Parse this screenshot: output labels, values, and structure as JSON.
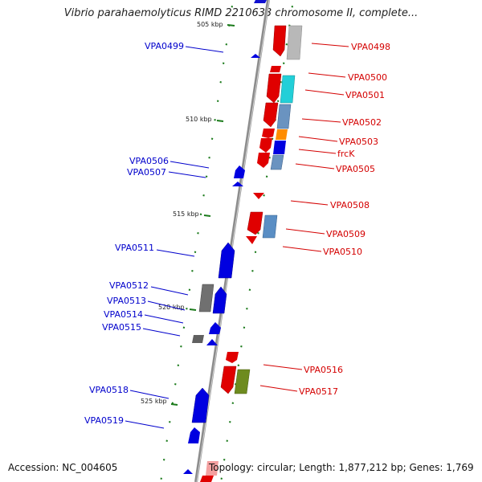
{
  "title": "Vibrio parahaemolyticus RIMD 2210633 chromosome II, complete...",
  "footer": {
    "accession": "Accession: NC_004605",
    "summary": "Topology: circular; Length: 1,877,212 bp; Genes: 1,769"
  },
  "colors": {
    "forward_label": "#d40000",
    "reverse_label": "#0000cc",
    "backbone": "#909090",
    "tick": "#1a7a1a"
  },
  "kbp_marks": [
    "505 kbp",
    "510 kbp",
    "515 kbp",
    "520 kbp",
    "525 kbp"
  ],
  "genes_right": [
    {
      "name": "VPA0498"
    },
    {
      "name": "VPA0500"
    },
    {
      "name": "VPA0501"
    },
    {
      "name": "VPA0502"
    },
    {
      "name": "VPA0503"
    },
    {
      "name": "frcK"
    },
    {
      "name": "VPA0505"
    },
    {
      "name": "VPA0508"
    },
    {
      "name": "VPA0509"
    },
    {
      "name": "VPA0510"
    },
    {
      "name": "VPA0516"
    },
    {
      "name": "VPA0517"
    }
  ],
  "genes_left": [
    {
      "name": "VPA0499"
    },
    {
      "name": "VPA0506"
    },
    {
      "name": "VPA0507"
    },
    {
      "name": "VPA0511"
    },
    {
      "name": "VPA0512"
    },
    {
      "name": "VPA0513"
    },
    {
      "name": "VPA0514"
    },
    {
      "name": "VPA0515"
    },
    {
      "name": "VPA0518"
    },
    {
      "name": "VPA0519"
    }
  ]
}
